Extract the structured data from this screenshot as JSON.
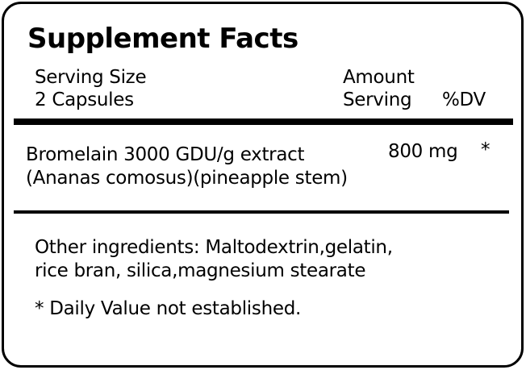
{
  "title": "Supplement Facts",
  "serving": {
    "label": "Serving Size",
    "value": "2 Capsules"
  },
  "columns": {
    "amount_line1": "Amount",
    "amount_line2": "Serving",
    "dv": "%DV"
  },
  "ingredients": [
    {
      "name_line1": "Bromelain 3000 GDU/g extract",
      "name_line2": "(Ananas comosus)(pineapple stem)",
      "amount": "800 mg",
      "dv": "*"
    }
  ],
  "other_ingredients": {
    "line1": "Other ingredients: Maltodextrin,gelatin,",
    "line2": "rice bran, silica,magnesium stearate"
  },
  "footnote": "* Daily Value not established."
}
